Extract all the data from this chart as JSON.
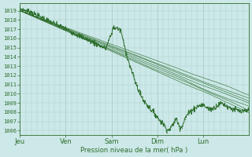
{
  "bg_color": "#cde8e8",
  "grid_color": "#a8cccc",
  "line_color": "#2d6e2d",
  "ylabel_values": [
    1006,
    1007,
    1008,
    1009,
    1010,
    1011,
    1012,
    1013,
    1014,
    1015,
    1016,
    1017,
    1018,
    1019
  ],
  "ylim": [
    1005.5,
    1019.8
  ],
  "xlabel": "Pression niveau de la mer( hPa )",
  "x_ticks": [
    0,
    24,
    48,
    72,
    96
  ],
  "x_tick_labels": [
    "Jeu",
    "Ven",
    "Sam",
    "Dim",
    "Lun"
  ],
  "xlim": [
    0,
    120
  ],
  "ensemble_starts": [
    1019.0,
    1019.0,
    1019.0,
    1019.0,
    1019.0,
    1019.0,
    1019.0
  ],
  "ensemble_ends": [
    1009.5,
    1009.2,
    1008.9,
    1008.6,
    1008.3,
    1008.0,
    1009.8
  ],
  "ensemble_seeds": [
    10,
    20,
    30,
    40,
    50,
    60,
    70
  ]
}
